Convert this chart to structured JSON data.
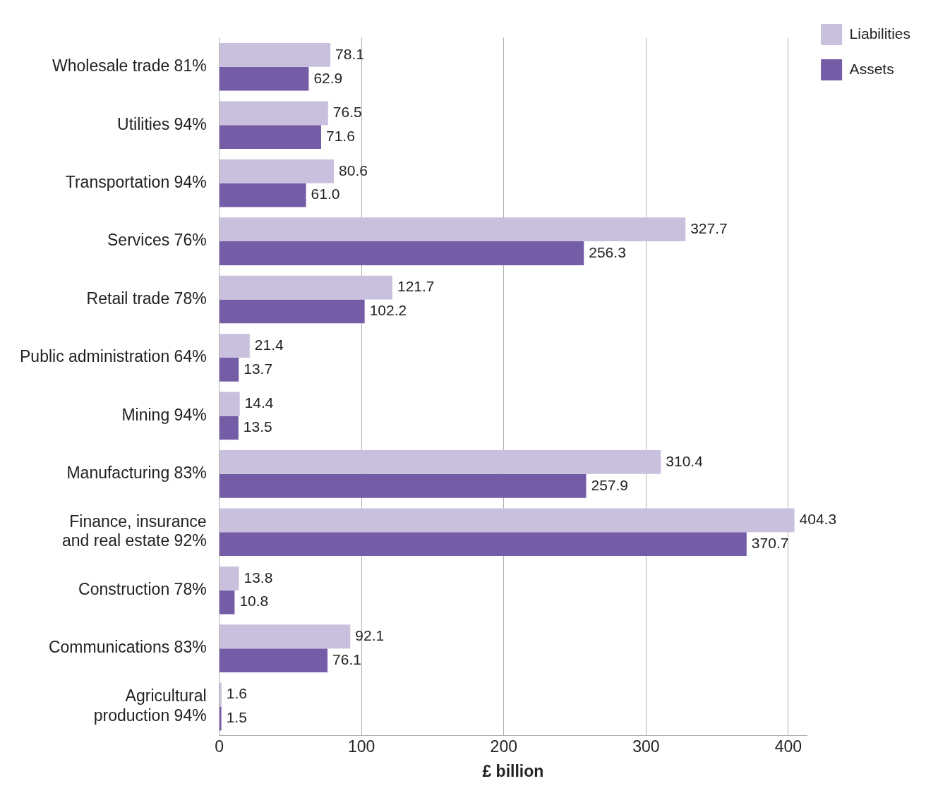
{
  "chart_data": {
    "type": "bar",
    "orientation": "horizontal",
    "xlabel": "£ billion",
    "categories": [
      "Wholesale trade 81%",
      "Utilities 94%",
      "Transportation 94%",
      "Services 76%",
      "Retail trade 78%",
      "Public administration 64%",
      "Mining 94%",
      "Manufacturing 83%",
      "Finance, insurance\nand real estate 92%",
      "Construction 78%",
      "Communications 83%",
      "Agricultural\nproduction 94%"
    ],
    "series": [
      {
        "name": "Liabilities",
        "color": "#c9c0dd",
        "values": [
          78.1,
          76.5,
          80.6,
          327.7,
          121.7,
          21.4,
          14.4,
          310.4,
          404.3,
          13.8,
          92.1,
          1.6
        ],
        "value_labels": [
          "78.1",
          "76.5",
          "80.6",
          "327.7",
          "121.7",
          "21.4",
          "14.4",
          "310.4",
          "404.3",
          "13.8",
          "92.1",
          "1.6"
        ]
      },
      {
        "name": "Assets",
        "color": "#745ca6",
        "values": [
          62.9,
          71.6,
          61.0,
          256.3,
          102.2,
          13.7,
          13.5,
          257.9,
          370.7,
          10.8,
          76.1,
          1.5
        ],
        "value_labels": [
          "62.9",
          "71.6",
          "61.0",
          "256.3",
          "102.2",
          "13.7",
          "13.5",
          "257.9",
          "370.7",
          "10.8",
          "76.1",
          "1.5"
        ]
      }
    ],
    "xlim": [
      0,
      413
    ],
    "xticks": [
      0,
      100,
      200,
      300,
      400
    ],
    "grid": "x",
    "legend": "top right"
  }
}
